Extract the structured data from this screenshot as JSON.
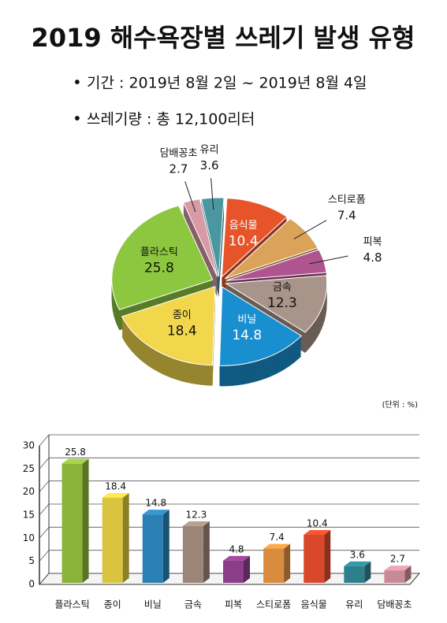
{
  "title": "2019 해수욕장별 쓰레기 발생 유형",
  "bullets": [
    "기간 : 2019년 8월 2일 ~ 2019년 8월 4일",
    "쓰레기량 : 총 12,100리터"
  ],
  "chart_data": [
    {
      "type": "pie",
      "categories": [
        "유리",
        "음식물",
        "스티로폼",
        "피복",
        "금속",
        "비닐",
        "종이",
        "플라스틱",
        "담배꽁초"
      ],
      "values": [
        3.6,
        10.4,
        7.4,
        4.8,
        12.3,
        14.8,
        18.4,
        25.8,
        2.7
      ],
      "colors": [
        "#4b97a0",
        "#e8542a",
        "#dba35a",
        "#b0548f",
        "#a89488",
        "#1a8fd0",
        "#f2d64b",
        "#8dc63f",
        "#d89aa7"
      ]
    },
    {
      "type": "bar",
      "unit": "(단위 : %)",
      "categories": [
        "플라스틱",
        "종이",
        "비닐",
        "금속",
        "피복",
        "스티로폼",
        "음식물",
        "유리",
        "담배꽁초"
      ],
      "values": [
        25.8,
        18.4,
        14.8,
        12.3,
        4.8,
        7.4,
        10.4,
        3.6,
        2.7
      ],
      "colors": [
        "#8ab33a",
        "#d8c43e",
        "#2a7fb4",
        "#9a8578",
        "#8a3d88",
        "#d98b3e",
        "#d9482a",
        "#2e7f8c",
        "#c98a98"
      ],
      "ylim": [
        0,
        30
      ],
      "yticks": [
        0,
        5,
        10,
        15,
        20,
        25,
        30
      ],
      "grid": true
    }
  ]
}
